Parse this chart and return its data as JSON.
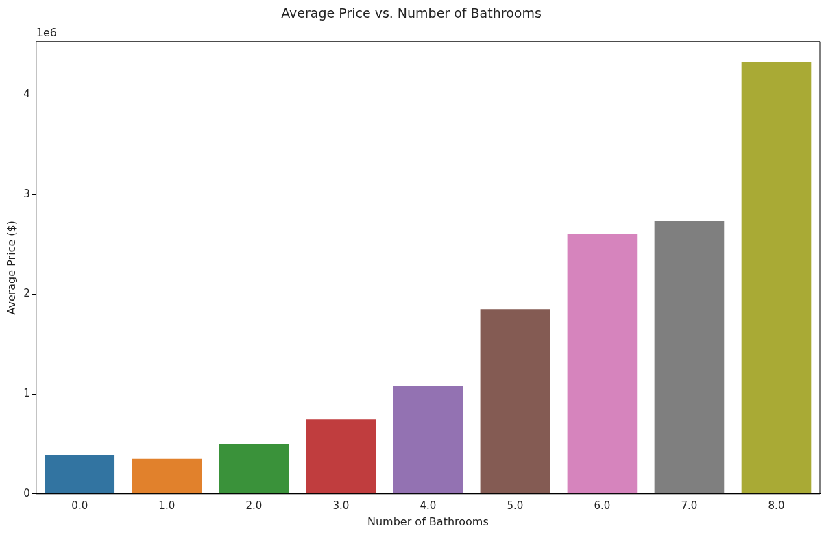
{
  "chart_data": {
    "type": "bar",
    "title": "Average Price vs. Number of Bathrooms",
    "xlabel": "Number of Bathrooms",
    "ylabel": "Average Price ($)",
    "categories": [
      "0.0",
      "1.0",
      "2.0",
      "3.0",
      "4.0",
      "5.0",
      "6.0",
      "7.0",
      "8.0"
    ],
    "values": [
      0.39,
      0.35,
      0.5,
      0.745,
      1.08,
      1.85,
      2.605,
      2.735,
      4.33
    ],
    "colors": [
      "#3274a1",
      "#e1812c",
      "#3a923a",
      "#c03d3e",
      "#9372b2",
      "#845b53",
      "#d684bd",
      "#7f7f7f",
      "#a9aa35"
    ],
    "ylim": [
      0,
      4.53
    ],
    "yticks": [
      0,
      1,
      2,
      3,
      4
    ],
    "annotations": [
      "1e6"
    ],
    "grid": false,
    "legend": false
  }
}
